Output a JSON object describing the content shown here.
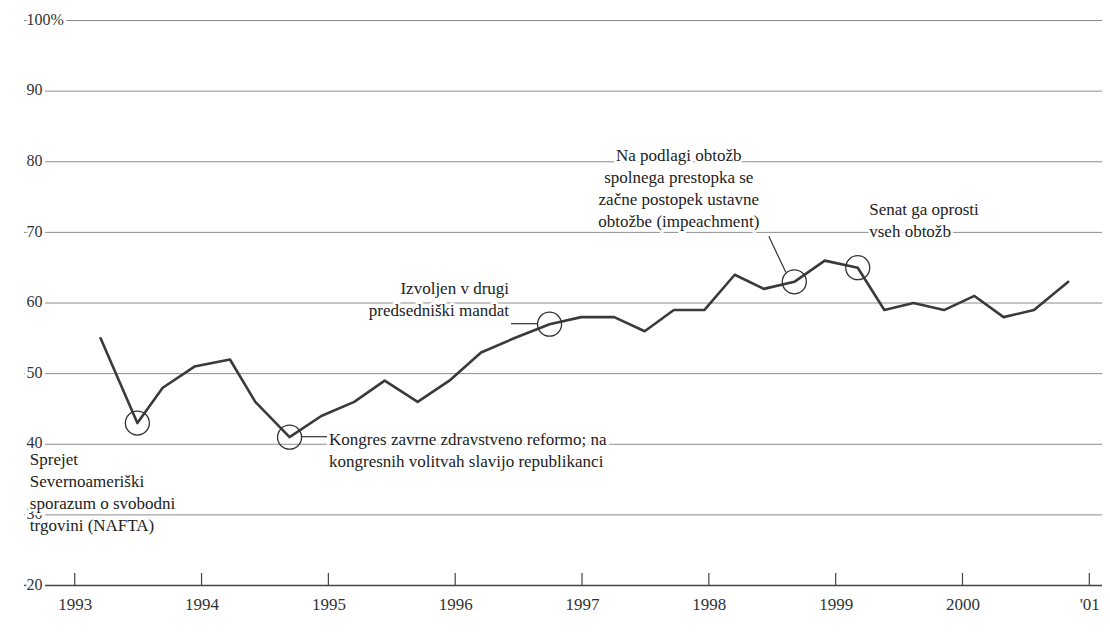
{
  "chart_data": {
    "type": "line",
    "x": [
      1993.2,
      1993.49,
      1993.69,
      1993.94,
      1994.22,
      1994.42,
      1994.69,
      1994.94,
      1995.2,
      1995.44,
      1995.7,
      1995.95,
      1996.2,
      1996.46,
      1996.74,
      1996.99,
      1997.25,
      1997.49,
      1997.72,
      1997.96,
      1998.2,
      1998.43,
      1998.67,
      1998.91,
      1999.17,
      1999.38,
      1999.61,
      1999.85,
      2000.09,
      2000.32,
      2000.56,
      2000.83
    ],
    "values": [
      55,
      43,
      48,
      51,
      52,
      46,
      41,
      44,
      46,
      49,
      46,
      49,
      53,
      55,
      57,
      58,
      58,
      56,
      59,
      59,
      64,
      62,
      63,
      66,
      65,
      59,
      60,
      59,
      61,
      58,
      59,
      63
    ],
    "color": "#3a3a3a",
    "xlim": [
      1992.6,
      2001.1
    ],
    "xticks": [
      1993,
      1994,
      1995,
      1996,
      1997,
      1998,
      1999,
      2000,
      {
        "value": 2001,
        "label": "'01"
      }
    ],
    "ylim": [
      20,
      100
    ],
    "yticks": [
      20,
      30,
      40,
      50,
      60,
      70,
      80,
      90,
      {
        "value": 100,
        "label": "100%"
      }
    ],
    "grid": true,
    "annotations": [
      {
        "text": "Sprejet\nSevernoameriški\nsporazum o svobodni\ntrgovini (NAFTA)",
        "x": 1993.49,
        "y": 43
      },
      {
        "text": "Kongres zavrne zdravstveno reformo; na\nkongresnih volitvah slavijo republikanci",
        "x": 1994.69,
        "y": 41
      },
      {
        "text": "Izvoljen v drugi\npredsedniški mandat",
        "x": 1996.74,
        "y": 57
      },
      {
        "text": "Na podlagi obtožb\nspolnega prestopka se\nzačne postopek ustavne\nobtožbe (impeachment)",
        "x": 1998.67,
        "y": 63
      },
      {
        "text": "Senat ga oprosti\nvseh obtožb",
        "x": 1999.17,
        "y": 65
      }
    ]
  }
}
